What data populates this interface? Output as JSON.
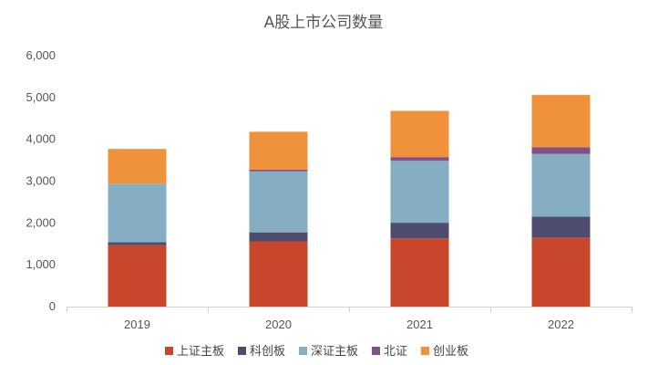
{
  "chart_data": {
    "type": "bar",
    "stacked": true,
    "title": "A股上市公司数量",
    "xlabel": "",
    "ylabel": "",
    "ylim": [
      0,
      6000
    ],
    "yticks": [
      0,
      1000,
      2000,
      3000,
      4000,
      5000,
      6000
    ],
    "ytick_labels": [
      "0",
      "1,000",
      "2,000",
      "3,000",
      "4,000",
      "5,000",
      "6,000"
    ],
    "categories": [
      "2019",
      "2020",
      "2021",
      "2022"
    ],
    "series": [
      {
        "name": "上证主板",
        "color": "#C8462B",
        "values": [
          1470,
          1560,
          1630,
          1650
        ]
      },
      {
        "name": "科创板",
        "color": "#4E4C6E",
        "values": [
          70,
          215,
          375,
          500
        ]
      },
      {
        "name": "深证主板",
        "color": "#86AEC2",
        "values": [
          1400,
          1460,
          1480,
          1500
        ]
      },
      {
        "name": "北证",
        "color": "#80508A",
        "values": [
          0,
          40,
          90,
          160
        ]
      },
      {
        "name": "创业板",
        "color": "#F0923C",
        "values": [
          830,
          905,
          1105,
          1250
        ]
      }
    ],
    "legend_position": "bottom",
    "grid": false
  }
}
